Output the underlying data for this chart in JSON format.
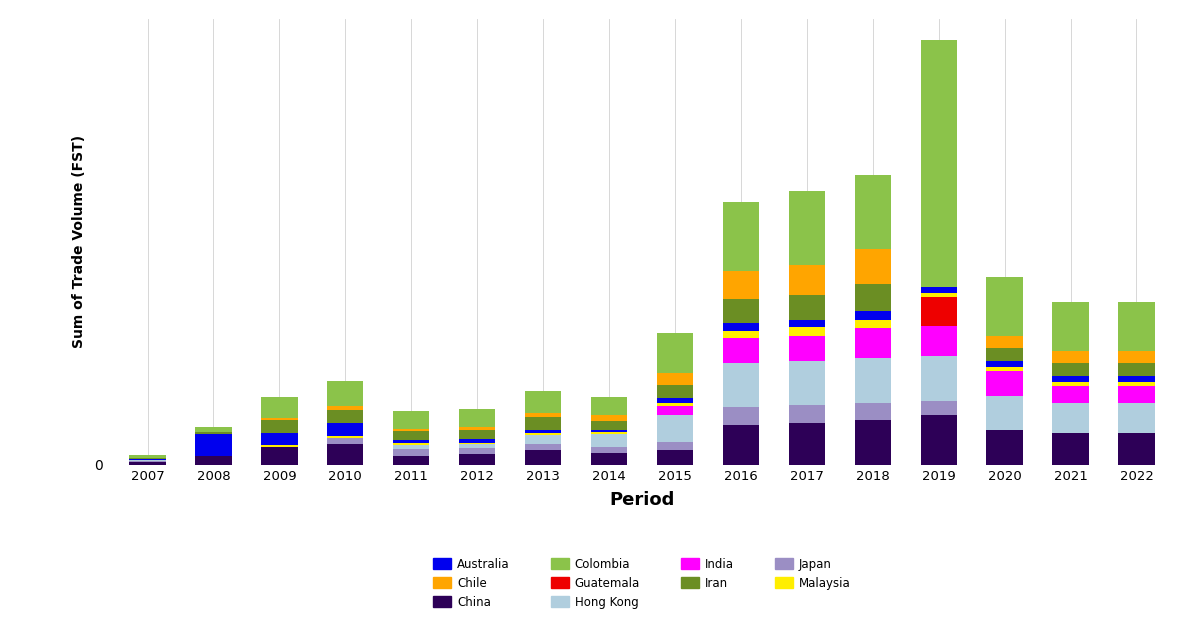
{
  "years": [
    2007,
    2008,
    2009,
    2010,
    2011,
    2012,
    2013,
    2014,
    2015,
    2016,
    2017,
    2018,
    2019,
    2020,
    2021,
    2022
  ],
  "stack_order": [
    "China",
    "Japan",
    "Hong Kong",
    "India",
    "Guatemala",
    "Malaysia",
    "Australia",
    "Iran",
    "Chile",
    "Colombia"
  ],
  "colors": {
    "Australia": "#0000EE",
    "Chile": "#FFA500",
    "China": "#2D0057",
    "Colombia": "#8BC34A",
    "Guatemala": "#EE0000",
    "Hong Kong": "#B0CEDE",
    "India": "#FF00FF",
    "Iran": "#6B8E23",
    "Japan": "#9B8EC4",
    "Malaysia": "#FFEE00"
  },
  "data": {
    "China": [
      0.3,
      0.9,
      1.8,
      2.1,
      0.9,
      1.1,
      1.5,
      1.2,
      1.5,
      4.0,
      4.2,
      4.5,
      5.0,
      3.5,
      3.2,
      3.2
    ],
    "Japan": [
      0.1,
      0.0,
      0.0,
      0.6,
      0.7,
      0.6,
      0.6,
      0.6,
      0.8,
      1.8,
      1.8,
      1.8,
      1.5,
      0.0,
      0.0,
      0.0
    ],
    "Hong Kong": [
      0.05,
      0.0,
      0.0,
      0.0,
      0.4,
      0.4,
      0.9,
      1.3,
      2.7,
      4.5,
      4.5,
      4.5,
      4.5,
      3.5,
      3.0,
      3.0
    ],
    "India": [
      0.0,
      0.0,
      0.0,
      0.0,
      0.0,
      0.0,
      0.0,
      0.0,
      0.9,
      2.5,
      2.5,
      3.0,
      3.0,
      2.5,
      1.8,
      1.8
    ],
    "Guatemala": [
      0.0,
      0.0,
      0.0,
      0.0,
      0.0,
      0.0,
      0.0,
      0.0,
      0.0,
      0.0,
      0.0,
      0.0,
      3.0,
      0.0,
      0.0,
      0.0
    ],
    "Malaysia": [
      0.0,
      0.0,
      0.2,
      0.25,
      0.15,
      0.15,
      0.25,
      0.25,
      0.4,
      0.7,
      0.9,
      0.9,
      0.4,
      0.4,
      0.4,
      0.4
    ],
    "Australia": [
      0.15,
      2.2,
      1.2,
      1.3,
      0.4,
      0.4,
      0.3,
      0.2,
      0.5,
      0.8,
      0.8,
      0.9,
      0.6,
      0.6,
      0.6,
      0.6
    ],
    "Iran": [
      0.08,
      0.25,
      1.3,
      1.3,
      0.9,
      0.9,
      1.3,
      0.9,
      1.3,
      2.5,
      2.5,
      2.7,
      0.0,
      1.3,
      1.3,
      1.3
    ],
    "Chile": [
      0.0,
      0.0,
      0.2,
      0.4,
      0.15,
      0.25,
      0.4,
      0.6,
      1.2,
      2.8,
      3.0,
      3.5,
      0.0,
      1.2,
      1.2,
      1.2
    ],
    "Colombia": [
      0.3,
      0.5,
      2.2,
      2.5,
      1.8,
      1.8,
      2.2,
      1.8,
      4.0,
      7.0,
      7.5,
      7.5,
      25.0,
      6.0,
      5.0,
      5.0
    ]
  },
  "legend_entries": [
    [
      "Australia",
      "Chile",
      "China",
      "Colombia"
    ],
    [
      "Guatemala",
      "Hong Kong",
      "India",
      "Iran"
    ],
    [
      "Japan",
      "Malaysia"
    ]
  ],
  "xlabel": "Period",
  "ylabel": "Sum of Trade Volume (FST)",
  "background_color": "#FFFFFF",
  "grid_color": "#CCCCCC"
}
